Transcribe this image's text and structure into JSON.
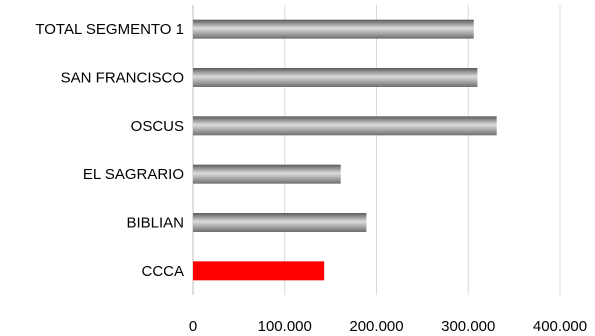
{
  "chart_data": {
    "type": "bar",
    "orientation": "horizontal",
    "title": "",
    "xlabel": "",
    "ylabel": "",
    "categories": [
      "TOTAL SEGMENTO 1",
      "SAN FRANCISCO",
      "OSCUS",
      "EL SAGRARIO",
      "BIBLIAN",
      "CCCA"
    ],
    "values": [
      306000,
      310000,
      331000,
      161000,
      189000,
      143000
    ],
    "bar_colors": [
      "#8c8c8c",
      "#8c8c8c",
      "#8c8c8c",
      "#8c8c8c",
      "#8c8c8c",
      "#ff0000"
    ],
    "xlim": [
      0,
      400000
    ],
    "x_ticks": [
      {
        "value": 0,
        "label": "0"
      },
      {
        "value": 100000,
        "label": "100.000"
      },
      {
        "value": 200000,
        "label": "200.000"
      },
      {
        "value": 300000,
        "label": "300.000"
      },
      {
        "value": 400000,
        "label": "400.000"
      }
    ],
    "grid": true,
    "legend": "none"
  }
}
